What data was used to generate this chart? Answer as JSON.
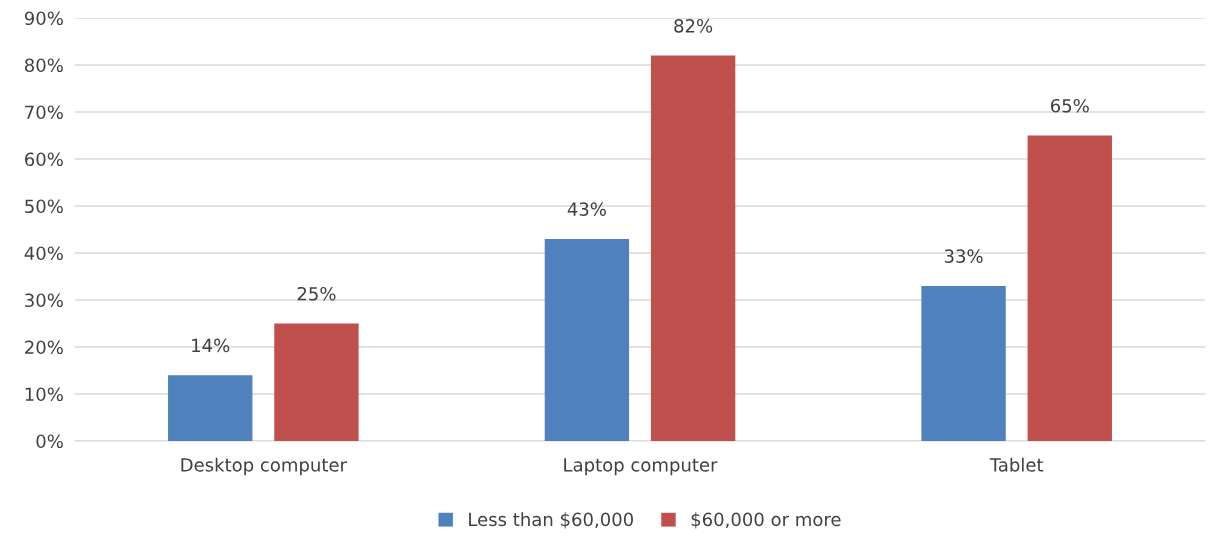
{
  "chart_data": {
    "type": "bar",
    "categories": [
      "Desktop computer",
      "Laptop computer",
      "Tablet"
    ],
    "series": [
      {
        "name": "Less than $60,000",
        "color": "#4f81bd",
        "values": [
          14,
          43,
          33
        ],
        "value_labels": [
          "14%",
          "43%",
          "33%"
        ]
      },
      {
        "name": "$60,000 or more",
        "color": "#c0504d",
        "values": [
          25,
          82,
          65
        ],
        "value_labels": [
          "25%",
          "82%",
          "65%"
        ]
      }
    ],
    "ylim": [
      0,
      90
    ],
    "yticks": [
      {
        "value": 0,
        "label": "0%"
      },
      {
        "value": 10,
        "label": "10%"
      },
      {
        "value": 20,
        "label": "20%"
      },
      {
        "value": 30,
        "label": "30%"
      },
      {
        "value": 40,
        "label": "40%"
      },
      {
        "value": 50,
        "label": "50%"
      },
      {
        "value": 60,
        "label": "60%"
      },
      {
        "value": 70,
        "label": "70%"
      },
      {
        "value": 80,
        "label": "80%"
      },
      {
        "value": 90,
        "label": "90%"
      }
    ],
    "grid": "y",
    "legend": "bottom"
  }
}
